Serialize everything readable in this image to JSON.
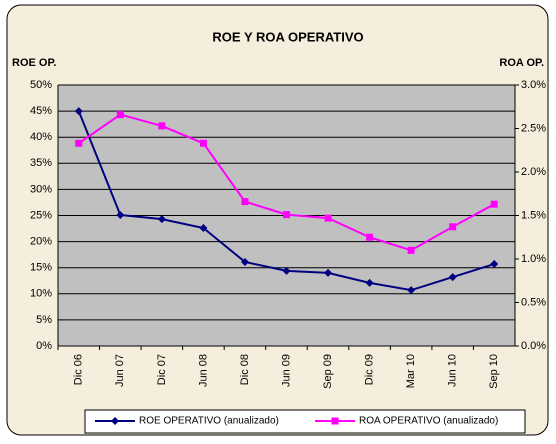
{
  "chart_data": {
    "type": "line",
    "title": "ROE Y ROA OPERATIVO",
    "y_label": "ROE OP.",
    "y2_label": "ROA OP.",
    "categories": [
      "Dic 06",
      "Jun 07",
      "Dic 07",
      "Jun 08",
      "Dic 08",
      "Jun 09",
      "Sep 09",
      "Dic 09",
      "Mar 10",
      "Jun 10",
      "Sep 10"
    ],
    "series": [
      {
        "name": "ROE OPERATIVO  (anualizado)",
        "color": "#000080",
        "marker": "diamond",
        "values": [
          45.0,
          25.1,
          24.3,
          22.6,
          16.1,
          14.4,
          14.0,
          12.1,
          10.7,
          13.2,
          15.7
        ]
      },
      {
        "name": "ROA OPERATIVO  (anualizado)",
        "color": "#ff00ff",
        "marker": "square",
        "axis": "y2",
        "values": [
          2.33,
          2.66,
          2.53,
          2.33,
          1.66,
          1.51,
          1.47,
          1.25,
          1.1,
          1.37,
          1.63
        ]
      }
    ],
    "ylim": [
      0,
      50
    ],
    "yticks": [
      {
        "value": 0,
        "label": "0%"
      },
      {
        "value": 5,
        "label": "5%"
      },
      {
        "value": 10,
        "label": "10%"
      },
      {
        "value": 15,
        "label": "15%"
      },
      {
        "value": 20,
        "label": "20%"
      },
      {
        "value": 25,
        "label": "25%"
      },
      {
        "value": 30,
        "label": "30%"
      },
      {
        "value": 35,
        "label": "35%"
      },
      {
        "value": 40,
        "label": "40%"
      },
      {
        "value": 45,
        "label": "45%"
      },
      {
        "value": 50,
        "label": "50%"
      }
    ],
    "y2lim": [
      0,
      3
    ],
    "y2ticks": [
      {
        "value": 0,
        "label": "0.0%"
      },
      {
        "value": 0.5,
        "label": "0.5%"
      },
      {
        "value": 1,
        "label": "1.0%"
      },
      {
        "value": 1.5,
        "label": "1.5%"
      },
      {
        "value": 2,
        "label": "2.0%"
      },
      {
        "value": 2.5,
        "label": "2.5%"
      },
      {
        "value": 3,
        "label": "3.0%"
      }
    ],
    "grid": true,
    "legend": "bottom"
  }
}
